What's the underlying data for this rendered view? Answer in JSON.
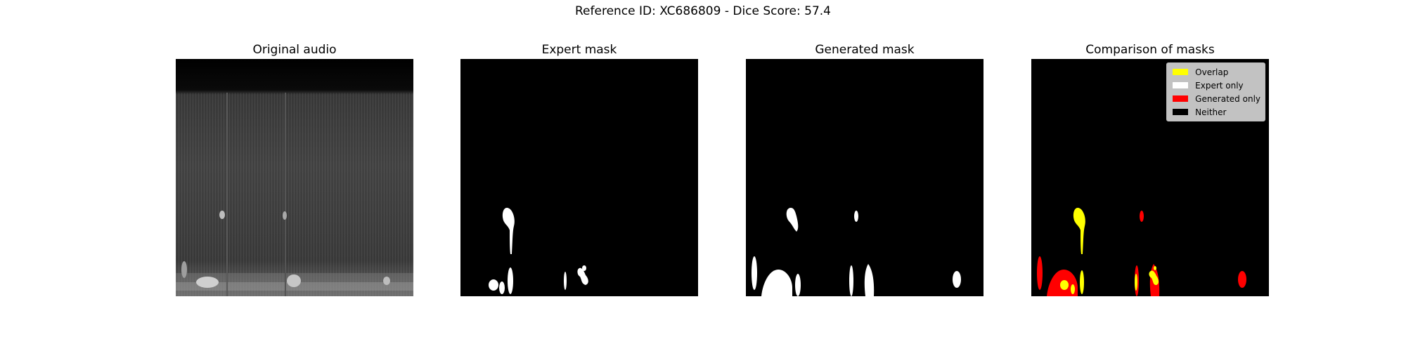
{
  "suptitle": "Reference ID: XC686809 - Dice Score: 57.4",
  "panels": [
    {
      "title": "Original audio"
    },
    {
      "title": "Expert mask"
    },
    {
      "title": "Generated mask"
    },
    {
      "title": "Comparison of masks"
    }
  ],
  "legend": [
    {
      "label": "Overlap",
      "color": "#ffff00"
    },
    {
      "label": "Expert only",
      "color": "#ffffff"
    },
    {
      "label": "Generated only",
      "color": "#ff0000"
    },
    {
      "label": "Neither",
      "color": "#000000"
    }
  ]
}
